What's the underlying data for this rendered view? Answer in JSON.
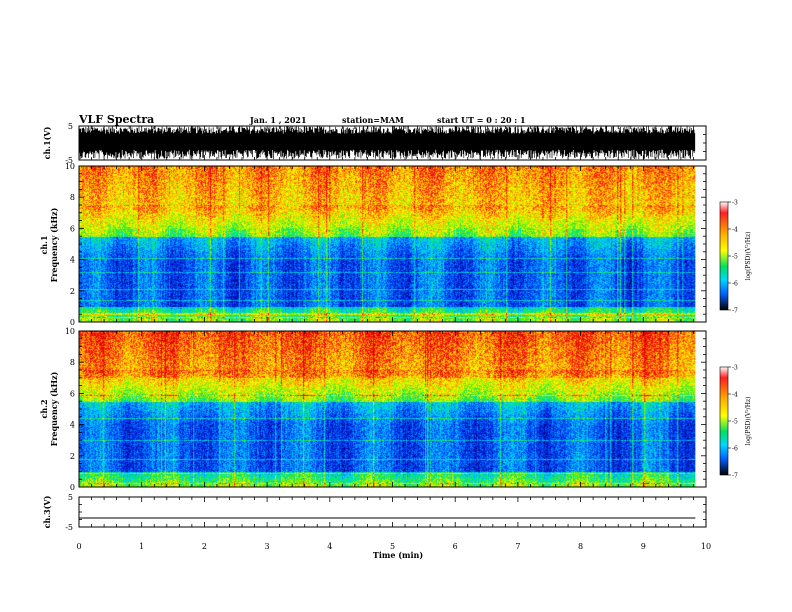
{
  "header": {
    "title": "VLF Spectra",
    "date": "Jan. 1 , 2021",
    "station": "station=MAM",
    "start_time": "start UT =  0 : 20 : 1"
  },
  "chart_data": [
    {
      "type": "line",
      "panel": "waveform-ch1",
      "ylabel": "ch.1(V)",
      "ylim": [
        -5,
        5
      ],
      "yticks": [
        5,
        -5
      ],
      "xlim": [
        0,
        10
      ],
      "signal": "dense dark waveform filling the panel, amplitude roughly ±5 V",
      "line_color": "#000000"
    },
    {
      "type": "heatmap",
      "panel": "spectrogram-ch1",
      "ylabel_line1": "ch.1",
      "ylabel_line2": "Frequency (kHz)",
      "ylim": [
        0,
        10
      ],
      "yticks": [
        0,
        2,
        4,
        6,
        8,
        10
      ],
      "xlim": [
        0,
        10
      ],
      "colorbar": {
        "label": "log(PSD)(V²/Hz)",
        "range": [
          -7,
          -3
        ],
        "ticks": [
          -3,
          -4,
          -5,
          -6,
          -7
        ]
      }
    },
    {
      "type": "heatmap",
      "panel": "spectrogram-ch2",
      "ylabel_line1": "ch.2",
      "ylabel_line2": "Frequency (kHz)",
      "ylim": [
        0,
        10
      ],
      "yticks": [
        0,
        2,
        4,
        6,
        8,
        10
      ],
      "xlim": [
        0,
        10
      ],
      "colorbar": {
        "label": "log(PSD)(V²/Hz)",
        "range": [
          -7,
          -3
        ],
        "ticks": [
          -3,
          -4,
          -5,
          -6,
          -7
        ]
      }
    },
    {
      "type": "line",
      "panel": "waveform-ch3",
      "ylabel": "ch.3(V)",
      "ylim": [
        -5,
        5
      ],
      "yticks": [
        5,
        -5
      ],
      "xlim": [
        0,
        10
      ],
      "values": [
        {
          "x": 0,
          "y": -2
        },
        {
          "x": 10,
          "y": -2
        }
      ],
      "line_color": "#000000"
    }
  ],
  "xaxis": {
    "label": "Time (min)",
    "ticks": [
      0,
      1,
      2,
      3,
      4,
      5,
      6,
      7,
      8,
      9,
      10
    ],
    "data_end": 9.83
  }
}
